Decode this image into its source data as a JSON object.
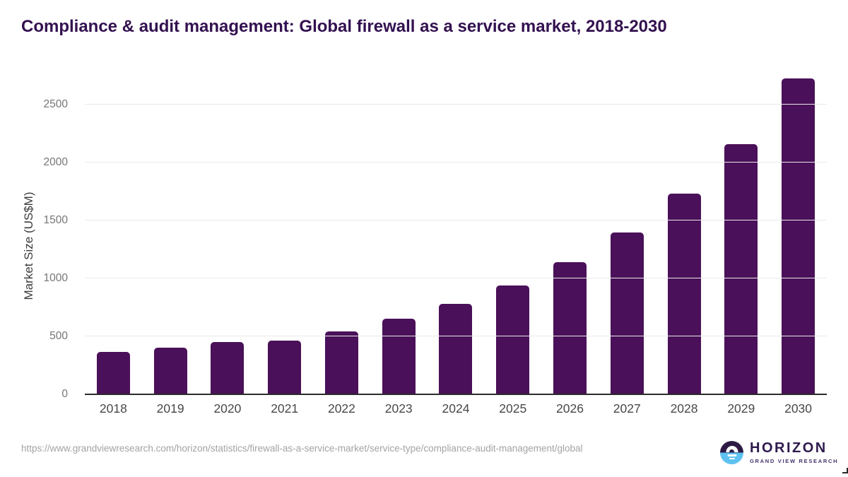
{
  "title": "Compliance & audit management: Global firewall as a service market, 2018-2030",
  "chart_data": {
    "type": "bar",
    "title": "Compliance & audit management: Global firewall as a service market, 2018-2030",
    "categories": [
      "2018",
      "2019",
      "2020",
      "2021",
      "2022",
      "2023",
      "2024",
      "2025",
      "2026",
      "2027",
      "2028",
      "2029",
      "2030"
    ],
    "values": [
      365,
      405,
      450,
      465,
      545,
      650,
      780,
      940,
      1140,
      1400,
      1730,
      2160,
      2725
    ],
    "xlabel": "",
    "ylabel": "Market Size (US$M)",
    "ylim": [
      0,
      2800
    ],
    "yticks": [
      0,
      500,
      1000,
      1500,
      2000,
      2500
    ],
    "grid": true,
    "legend": false,
    "bar_color": "#4a1059"
  },
  "footer": {
    "source_url": "https://www.grandviewresearch.com/horizon/statistics/firewall-as-a-service-market/service-type/compliance-audit-management/global"
  },
  "logo": {
    "name": "HORIZON",
    "subtitle": "GRAND VIEW RESEARCH",
    "mark_top_color": "#2d1a45",
    "mark_bottom_color": "#5ec1ef"
  },
  "colors": {
    "title": "#331150",
    "bar": "#4a1059",
    "gridline": "#e9e9e9",
    "axis_line": "#2b2b2b",
    "tick_label": "#767676",
    "x_label": "#484848",
    "url_text": "#a3a3a3"
  }
}
